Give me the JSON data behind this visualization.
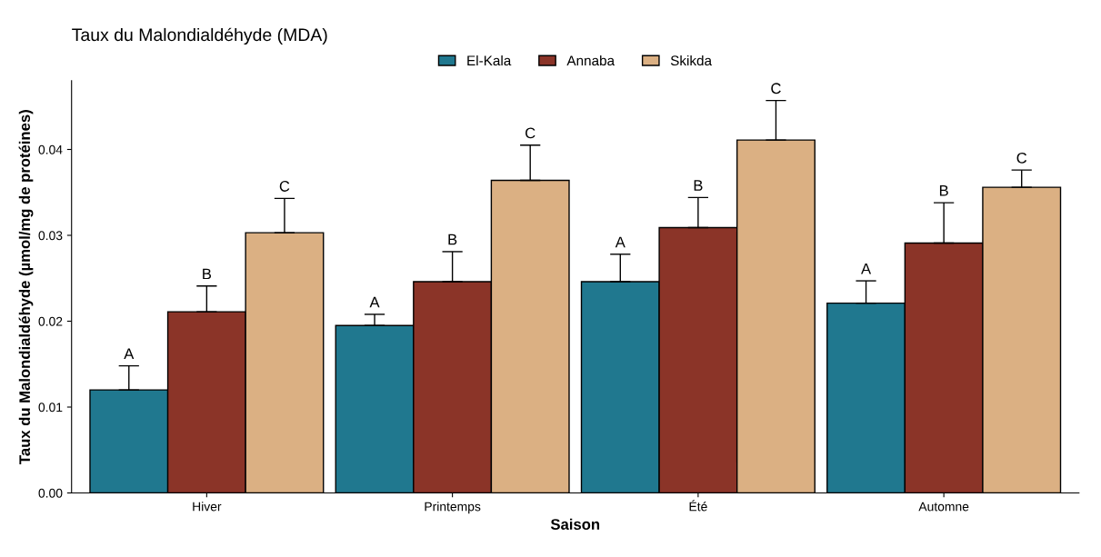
{
  "chart_data": {
    "type": "bar",
    "title": "Taux du Malondialdéhyde (MDA)",
    "xlabel": "Saison",
    "ylabel": "Taux du Malondialdéhyde (µmol/mg de protéines)",
    "categories": [
      "Hiver",
      "Printemps",
      "Été",
      "Automne"
    ],
    "series": [
      {
        "name": "El-Kala",
        "color": "#20788f",
        "values": [
          0.012,
          0.0195,
          0.0246,
          0.0221
        ],
        "errors": [
          [
            0.012,
            0.0148
          ],
          [
            0.0195,
            0.0208
          ],
          [
            0.0246,
            0.0278
          ],
          [
            0.0221,
            0.0247
          ]
        ],
        "value_labels": [
          "A",
          "A",
          "A",
          "A"
        ]
      },
      {
        "name": "Annaba",
        "color": "#8b3428",
        "values": [
          0.0211,
          0.0246,
          0.0309,
          0.0291
        ],
        "errors": [
          [
            0.0211,
            0.0241
          ],
          [
            0.0246,
            0.0281
          ],
          [
            0.0309,
            0.0344
          ],
          [
            0.0291,
            0.0338
          ]
        ],
        "value_labels": [
          "B",
          "B",
          "B",
          "B"
        ]
      },
      {
        "name": "Skikda",
        "color": "#dbb083",
        "values": [
          0.0303,
          0.0364,
          0.0411,
          0.0356
        ],
        "errors": [
          [
            0.0303,
            0.0343
          ],
          [
            0.0364,
            0.0405
          ],
          [
            0.0411,
            0.0457
          ],
          [
            0.0356,
            0.0376
          ]
        ],
        "value_labels": [
          "C",
          "C",
          "C",
          "C"
        ]
      }
    ],
    "ylim": [
      0,
      0.048
    ],
    "yticks": [
      {
        "value": 0,
        "label": "0.00"
      },
      {
        "value": 0.01,
        "label": "0.01"
      },
      {
        "value": 0.02,
        "label": "0.02"
      },
      {
        "value": 0.03,
        "label": "0.03"
      },
      {
        "value": 0.04,
        "label": "0.04"
      }
    ],
    "legend": "top",
    "grid": false
  }
}
